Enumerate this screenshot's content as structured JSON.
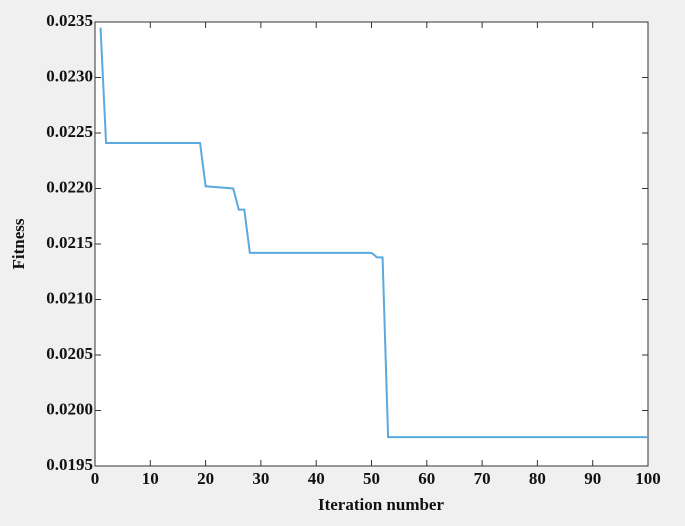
{
  "chart_data": {
    "type": "line",
    "x_label": "Iteration number",
    "y_label": "Fitness",
    "x": [
      1,
      2,
      19,
      20,
      25,
      26,
      27,
      28,
      35,
      50,
      51,
      52,
      53,
      100
    ],
    "series": [
      {
        "color": "#5aaae0",
        "values": [
          0.02345,
          0.02241,
          0.02241,
          0.02202,
          0.022,
          0.02181,
          0.02181,
          0.02142,
          0.02142,
          0.02142,
          0.02138,
          0.02138,
          0.01976,
          0.01976
        ]
      }
    ],
    "xlim": [
      0,
      100
    ],
    "xticks": [
      0,
      10,
      20,
      30,
      40,
      50,
      60,
      70,
      80,
      90,
      100
    ],
    "ylim": [
      0.0195,
      0.0235
    ],
    "yticks": [
      0.0195,
      {
        "value": 0.02,
        "label": "0.0200"
      },
      0.0205,
      {
        "value": 0.021,
        "label": "0.0210"
      },
      0.0215,
      {
        "value": 0.022,
        "label": "0.0220"
      },
      0.0225,
      {
        "value": 0.023,
        "label": "0.0230"
      },
      0.0235
    ]
  }
}
